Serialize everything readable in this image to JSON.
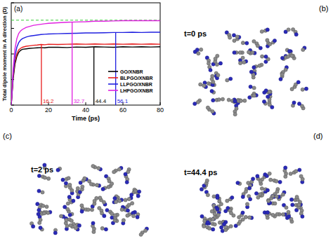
{
  "chart_data": {
    "type": "line",
    "panel_label": "(a)",
    "x_label": "Time (ps)",
    "y_label": "Total dipole moment in A direction (D)",
    "x": [
      0,
      1,
      2,
      3,
      4,
      5,
      6,
      8,
      10,
      12,
      14,
      16,
      18,
      20,
      25,
      30,
      35,
      40,
      45,
      50,
      55,
      60,
      65,
      70,
      75,
      80
    ],
    "series": [
      {
        "name": "GO/XNBR",
        "color": "#000000",
        "values": [
          0,
          500,
          800,
          950,
          1030,
          1070,
          1090,
          1100,
          1110,
          1115,
          1120,
          1125,
          1120,
          1130,
          1130,
          1125,
          1135,
          1130,
          1140,
          1135,
          1130,
          1140,
          1135,
          1140,
          1135,
          1140
        ]
      },
      {
        "name": "BLPGO/XNBR",
        "color": "#e81c1c",
        "values": [
          0,
          550,
          850,
          1000,
          1080,
          1110,
          1130,
          1150,
          1160,
          1170,
          1175,
          1185,
          1180,
          1190,
          1185,
          1190,
          1195,
          1190,
          1195,
          1190,
          1195,
          1190,
          1195,
          1190,
          1195,
          1190
        ]
      },
      {
        "name": "LLPGO/XNBR",
        "color": "#2020e0",
        "values": [
          0,
          600,
          950,
          1130,
          1220,
          1270,
          1300,
          1330,
          1350,
          1360,
          1370,
          1380,
          1385,
          1390,
          1395,
          1400,
          1405,
          1410,
          1410,
          1415,
          1420,
          1420,
          1425,
          1420,
          1425,
          1425
        ]
      },
      {
        "name": "LHPGO/XNBR",
        "color": "#e020e0",
        "values": [
          0,
          700,
          1100,
          1300,
          1400,
          1450,
          1480,
          1520,
          1540,
          1560,
          1570,
          1580,
          1590,
          1600,
          1610,
          1620,
          1625,
          1630,
          1640,
          1640,
          1645,
          1650,
          1650,
          1650,
          1650,
          1650
        ]
      }
    ],
    "annotations": [
      {
        "x": 16.2,
        "y": 1185,
        "color": "#e81c1c"
      },
      {
        "x": 32.7,
        "y": 1620,
        "color": "#e020e0"
      },
      {
        "x": 44.4,
        "y": 1135,
        "color": "#000000"
      },
      {
        "x": 56.1,
        "y": 1420,
        "color": "#2020e0"
      }
    ],
    "reference_line": {
      "value": 1660,
      "color": "#33cc33",
      "line_style": "dashed"
    },
    "xlim": [
      0,
      80
    ],
    "xticks": [
      0,
      20,
      40,
      60,
      80
    ],
    "ylim": [
      0,
      2000
    ],
    "yticks": [
      0,
      500,
      1000,
      1500,
      2000
    ],
    "tick_labels": "x",
    "legend": "lower right"
  },
  "snapshots": [
    {
      "label": "(b)",
      "time": "t=0 ps"
    },
    {
      "label": "(c)",
      "time": "t=2 ps"
    },
    {
      "label": "(d)",
      "time": "t=44.4 ps"
    }
  ]
}
